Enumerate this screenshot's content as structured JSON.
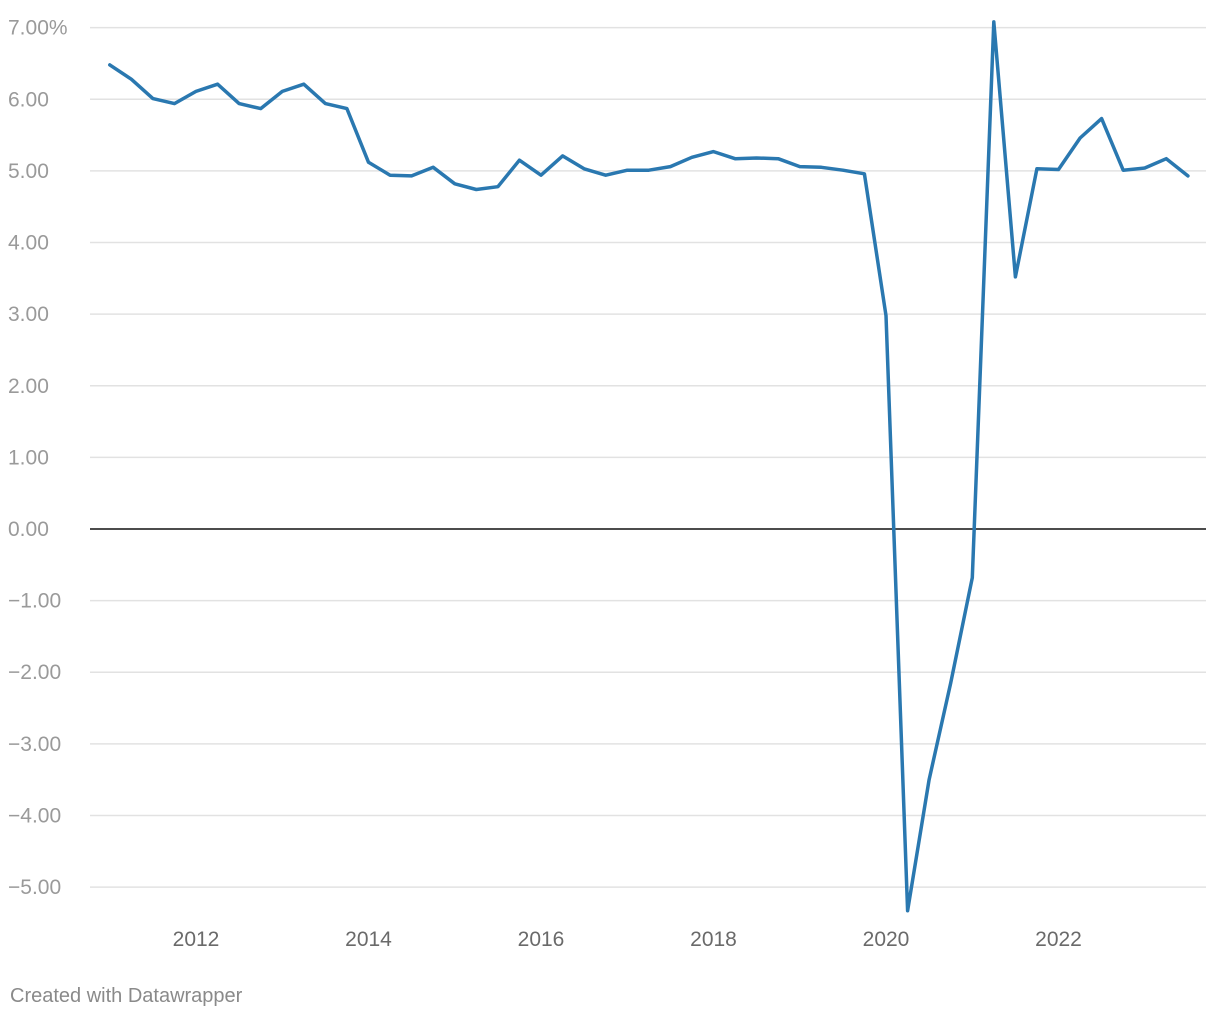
{
  "chart_data": {
    "type": "line",
    "title": "",
    "xlabel": "",
    "ylabel": "",
    "y_unit_suffix": "%",
    "ylim": [
      -5.5,
      7.2
    ],
    "xlim": [
      2011.0,
      2023.6
    ],
    "y_ticks": [
      {
        "value": 7,
        "label": "7.00%"
      },
      {
        "value": 6,
        "label": "6.00"
      },
      {
        "value": 5,
        "label": "5.00"
      },
      {
        "value": 4,
        "label": "4.00"
      },
      {
        "value": 3,
        "label": "3.00"
      },
      {
        "value": 2,
        "label": "2.00"
      },
      {
        "value": 1,
        "label": "1.00"
      },
      {
        "value": 0,
        "label": "0.00"
      },
      {
        "value": -1,
        "label": "−1.00"
      },
      {
        "value": -2,
        "label": "−2.00"
      },
      {
        "value": -3,
        "label": "−3.00"
      },
      {
        "value": -4,
        "label": "−4.00"
      },
      {
        "value": -5,
        "label": "−5.00"
      }
    ],
    "x_ticks": [
      {
        "value": 2012,
        "label": "2012"
      },
      {
        "value": 2014,
        "label": "2014"
      },
      {
        "value": 2016,
        "label": "2016"
      },
      {
        "value": 2018,
        "label": "2018"
      },
      {
        "value": 2020,
        "label": "2020"
      },
      {
        "value": 2022,
        "label": "2022"
      }
    ],
    "grid": true,
    "zero_line": true,
    "series": [
      {
        "color": "#2a78b0",
        "points": [
          {
            "x": 2011.0,
            "y": 6.48
          },
          {
            "x": 2011.25,
            "y": 6.28
          },
          {
            "x": 2011.5,
            "y": 6.01
          },
          {
            "x": 2011.75,
            "y": 5.94
          },
          {
            "x": 2012.0,
            "y": 6.11
          },
          {
            "x": 2012.25,
            "y": 6.21
          },
          {
            "x": 2012.5,
            "y": 5.94
          },
          {
            "x": 2012.75,
            "y": 5.87
          },
          {
            "x": 2013.0,
            "y": 6.11
          },
          {
            "x": 2013.25,
            "y": 6.21
          },
          {
            "x": 2013.5,
            "y": 5.94
          },
          {
            "x": 2013.75,
            "y": 5.87
          },
          {
            "x": 2014.0,
            "y": 5.12
          },
          {
            "x": 2014.25,
            "y": 4.94
          },
          {
            "x": 2014.5,
            "y": 4.93
          },
          {
            "x": 2014.75,
            "y": 5.05
          },
          {
            "x": 2015.0,
            "y": 4.82
          },
          {
            "x": 2015.25,
            "y": 4.74
          },
          {
            "x": 2015.5,
            "y": 4.78
          },
          {
            "x": 2015.75,
            "y": 5.15
          },
          {
            "x": 2016.0,
            "y": 4.94
          },
          {
            "x": 2016.25,
            "y": 5.21
          },
          {
            "x": 2016.5,
            "y": 5.03
          },
          {
            "x": 2016.75,
            "y": 4.94
          },
          {
            "x": 2017.0,
            "y": 5.01
          },
          {
            "x": 2017.25,
            "y": 5.01
          },
          {
            "x": 2017.5,
            "y": 5.06
          },
          {
            "x": 2017.75,
            "y": 5.19
          },
          {
            "x": 2018.0,
            "y": 5.27
          },
          {
            "x": 2018.25,
            "y": 5.17
          },
          {
            "x": 2018.5,
            "y": 5.18
          },
          {
            "x": 2018.75,
            "y": 5.17
          },
          {
            "x": 2019.0,
            "y": 5.06
          },
          {
            "x": 2019.25,
            "y": 5.05
          },
          {
            "x": 2019.5,
            "y": 5.01
          },
          {
            "x": 2019.75,
            "y": 4.96
          },
          {
            "x": 2020.0,
            "y": 2.98
          },
          {
            "x": 2020.25,
            "y": -5.33
          },
          {
            "x": 2020.5,
            "y": -3.5
          },
          {
            "x": 2020.75,
            "y": -2.15
          },
          {
            "x": 2021.0,
            "y": -0.68
          },
          {
            "x": 2021.25,
            "y": 7.08
          },
          {
            "x": 2021.5,
            "y": 3.52
          },
          {
            "x": 2021.75,
            "y": 5.03
          },
          {
            "x": 2022.0,
            "y": 5.02
          },
          {
            "x": 2022.25,
            "y": 5.46
          },
          {
            "x": 2022.5,
            "y": 5.73
          },
          {
            "x": 2022.75,
            "y": 5.01
          },
          {
            "x": 2023.0,
            "y": 5.04
          },
          {
            "x": 2023.25,
            "y": 5.17
          },
          {
            "x": 2023.5,
            "y": 4.93
          }
        ]
      }
    ]
  },
  "footer": {
    "credit": "Created with Datawrapper"
  },
  "colors": {
    "grid": "#e2e2e2",
    "zero_line": "#333333",
    "line": "#2a78b0"
  }
}
